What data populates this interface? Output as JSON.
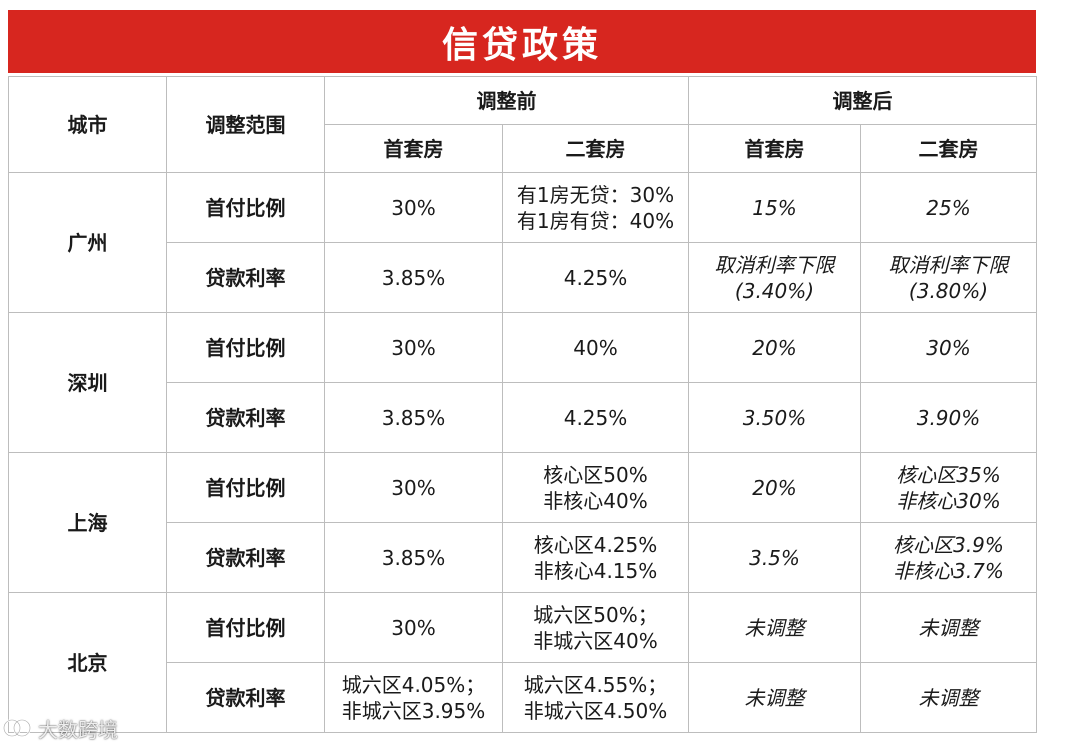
{
  "title": "信贷政策",
  "header": {
    "city": "城市",
    "scope": "调整范围",
    "before": "调整前",
    "after": "调整后",
    "first_home": "首套房",
    "second_home": "二套房"
  },
  "metrics": {
    "down_payment": "首付比例",
    "loan_rate": "贷款利率"
  },
  "cities": [
    {
      "name": "广州",
      "down_payment": {
        "before_first": "30%",
        "before_second": [
          "有1房无贷：30%",
          "有1房有贷：40%"
        ],
        "after_first": "15%",
        "after_second": "25%"
      },
      "loan_rate": {
        "before_first": "3.85%",
        "before_second": "4.25%",
        "after_first": [
          "取消利率下限",
          "(3.40%)"
        ],
        "after_second": [
          "取消利率下限",
          "(3.80%)"
        ]
      }
    },
    {
      "name": "深圳",
      "down_payment": {
        "before_first": "30%",
        "before_second": "40%",
        "after_first": "20%",
        "after_second": "30%"
      },
      "loan_rate": {
        "before_first": "3.85%",
        "before_second": "4.25%",
        "after_first": "3.50%",
        "after_second": "3.90%"
      }
    },
    {
      "name": "上海",
      "down_payment": {
        "before_first": "30%",
        "before_second": [
          "核心区50%",
          "非核心40%"
        ],
        "after_first": "20%",
        "after_second": [
          "核心区35%",
          "非核心30%"
        ]
      },
      "loan_rate": {
        "before_first": "3.85%",
        "before_second": [
          "核心区4.25%",
          "非核心4.15%"
        ],
        "after_first": "3.5%",
        "after_second": [
          "核心区3.9%",
          "非核心3.7%"
        ]
      }
    },
    {
      "name": "北京",
      "down_payment": {
        "before_first": "30%",
        "before_second": [
          "城六区50%；",
          "非城六区40%"
        ],
        "after_first": "未调整",
        "after_second": "未调整"
      },
      "loan_rate": {
        "before_first": [
          "城六区4.05%；",
          "非城六区3.95%"
        ],
        "before_second": [
          "城六区4.55%；",
          "非城六区4.50%"
        ],
        "after_first": "未调整",
        "after_second": "未调整"
      }
    }
  ],
  "watermark": "大数跨境",
  "colors": {
    "title_bg": "#d7261f",
    "after_text": "#b8232b",
    "border": "#bdbdbd"
  }
}
